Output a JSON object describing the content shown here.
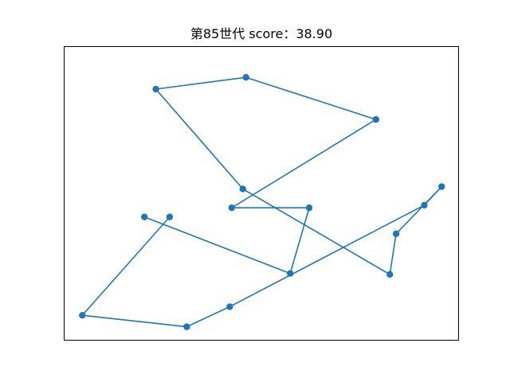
{
  "chart_data": {
    "type": "line",
    "title": "第85世代 score：38.90",
    "xlabel": "",
    "ylabel": "",
    "grid": false,
    "axes_ticks": false,
    "xlim": [
      0,
      100
    ],
    "ylim": [
      0,
      100
    ],
    "series": [
      {
        "color": "#1f77b4",
        "marker": "circle",
        "points": [
          [
            26.8,
            42.0
          ],
          [
            4.7,
            8.6
          ],
          [
            31.1,
            4.7
          ],
          [
            42.0,
            11.5
          ],
          [
            91.2,
            46.0
          ],
          [
            95.6,
            52.3
          ],
          [
            84.1,
            36.3
          ],
          [
            82.5,
            22.5
          ],
          [
            45.3,
            51.5
          ],
          [
            23.3,
            85.4
          ],
          [
            46.1,
            89.4
          ],
          [
            79.0,
            75.1
          ],
          [
            42.5,
            45.1
          ],
          [
            62.1,
            45.1
          ],
          [
            57.3,
            22.8
          ],
          [
            20.4,
            42.0
          ]
        ]
      }
    ]
  }
}
